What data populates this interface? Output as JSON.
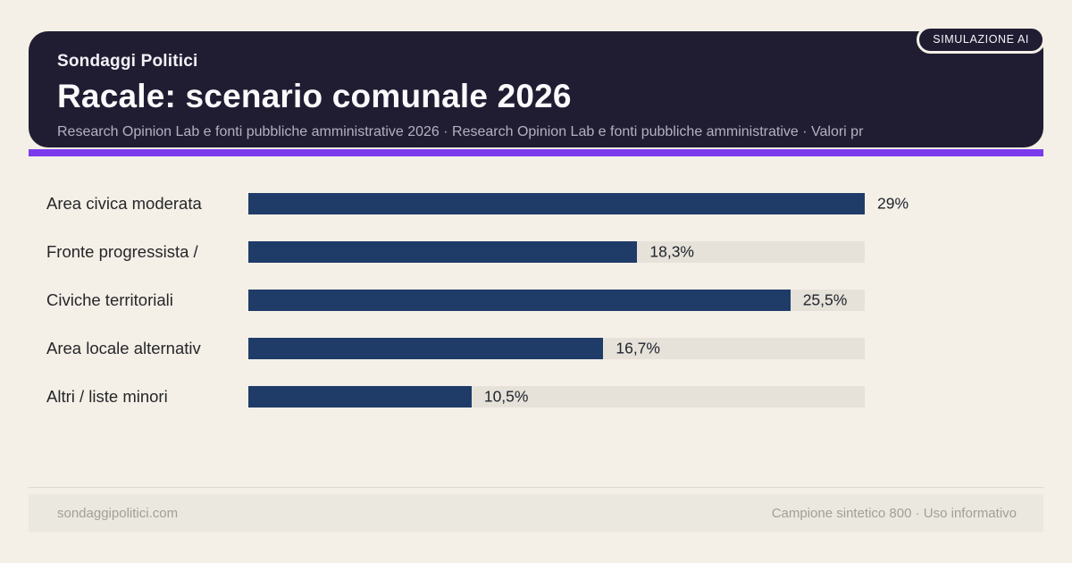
{
  "badge": {
    "label": "SIMULAZIONE AI"
  },
  "header": {
    "kicker": "Sondaggi Politici",
    "title": "Racale: scenario comunale 2026",
    "subtitle": "Research Opinion Lab e fonti pubbliche amministrative 2026 · Research Opinion Lab e fonti pubbliche amministrative · Valori pr"
  },
  "chart_data": {
    "type": "bar",
    "orientation": "horizontal",
    "title": "Racale: scenario comunale 2026",
    "categories": [
      "Area civica moderata",
      "Fronte progressista /",
      "Civiche territoriali",
      "Area locale alternativ",
      "Altri / liste minori"
    ],
    "values": [
      29,
      18.3,
      25.5,
      16.7,
      10.5
    ],
    "value_labels": [
      "29%",
      "18,3%",
      "25,5%",
      "16,7%",
      "10,5%"
    ],
    "unit": "%",
    "max_value": 29,
    "grid": false,
    "legend": false,
    "bar_color": "#1f3c69",
    "track_color": "#e6e2d9"
  },
  "footer": {
    "left": "sondaggipolitici.com",
    "right": "Campione sintetico 800 · Uso informativo"
  },
  "colors": {
    "page_bg": "#f4f0e7",
    "header_bg": "#201d33",
    "accent": "#7c3aed",
    "bar": "#1f3c69",
    "track": "#e6e2d9"
  }
}
